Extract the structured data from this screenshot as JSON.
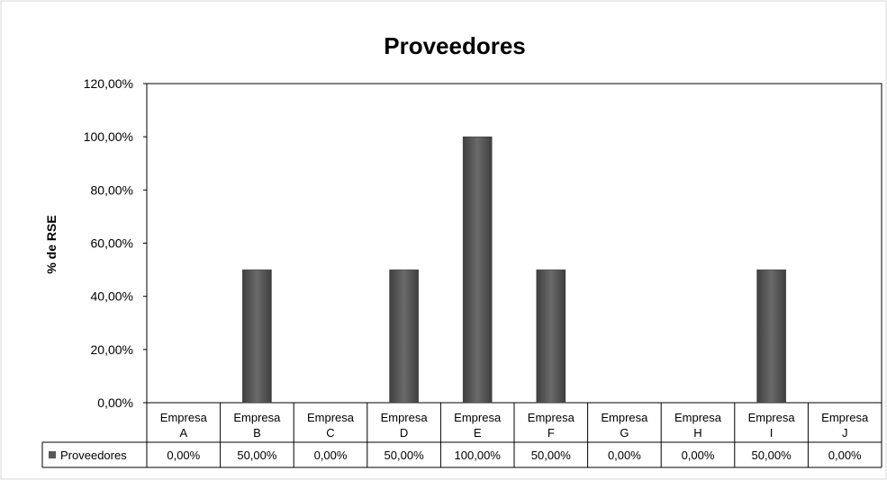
{
  "chart_data": {
    "type": "bar",
    "title": "Proveedores",
    "ylabel": "% de RSE",
    "xlabel": "",
    "ylim": [
      0,
      120
    ],
    "yticks": [
      0,
      20,
      40,
      60,
      80,
      100,
      120
    ],
    "ytick_labels": [
      "0,00%",
      "20,00%",
      "40,00%",
      "60,00%",
      "80,00%",
      "100,00%",
      "120,00%"
    ],
    "categories": [
      [
        "Empresa",
        "A"
      ],
      [
        "Empresa",
        "B"
      ],
      [
        "Empresa",
        "C"
      ],
      [
        "Empresa",
        "D"
      ],
      [
        "Empresa",
        "E"
      ],
      [
        "Empresa",
        "F"
      ],
      [
        "Empresa",
        "G"
      ],
      [
        "Empresa",
        "H"
      ],
      [
        "Empresa",
        "I"
      ],
      [
        "Empresa",
        "J"
      ]
    ],
    "series": [
      {
        "name": "Proveedores",
        "values": [
          0,
          50,
          0,
          50,
          100,
          50,
          0,
          0,
          50,
          0
        ],
        "value_labels": [
          "0,00%",
          "50,00%",
          "0,00%",
          "50,00%",
          "100,00%",
          "50,00%",
          "0,00%",
          "0,00%",
          "50,00%",
          "0,00%"
        ],
        "color": "#595959"
      }
    ],
    "grid": false,
    "data_table": true,
    "legend": "data-table"
  }
}
